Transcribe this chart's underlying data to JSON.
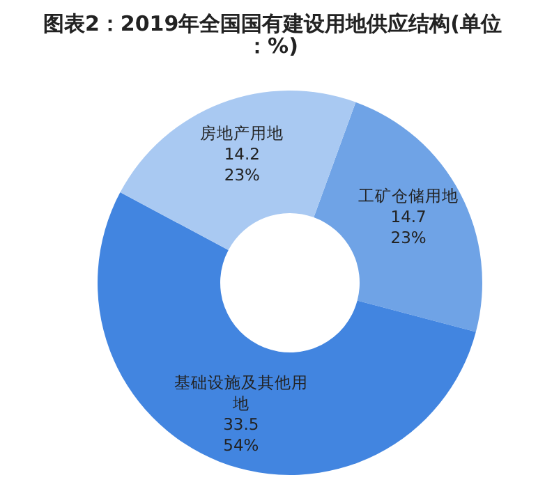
{
  "chart_data": {
    "type": "donut",
    "title": "图表2：2019年全国国有建设用地供应结构(单位：%)",
    "categories": [
      "工矿仓储用地",
      "基础设施及其他用地",
      "房地产用地"
    ],
    "values": [
      14.7,
      33.5,
      14.2
    ],
    "value_labels": [
      "14.7\n23%",
      "33.5\n54%",
      "14.2\n23%"
    ],
    "colors": [
      "#6fa3e6",
      "#4285e0",
      "#a9c9f2"
    ]
  }
}
